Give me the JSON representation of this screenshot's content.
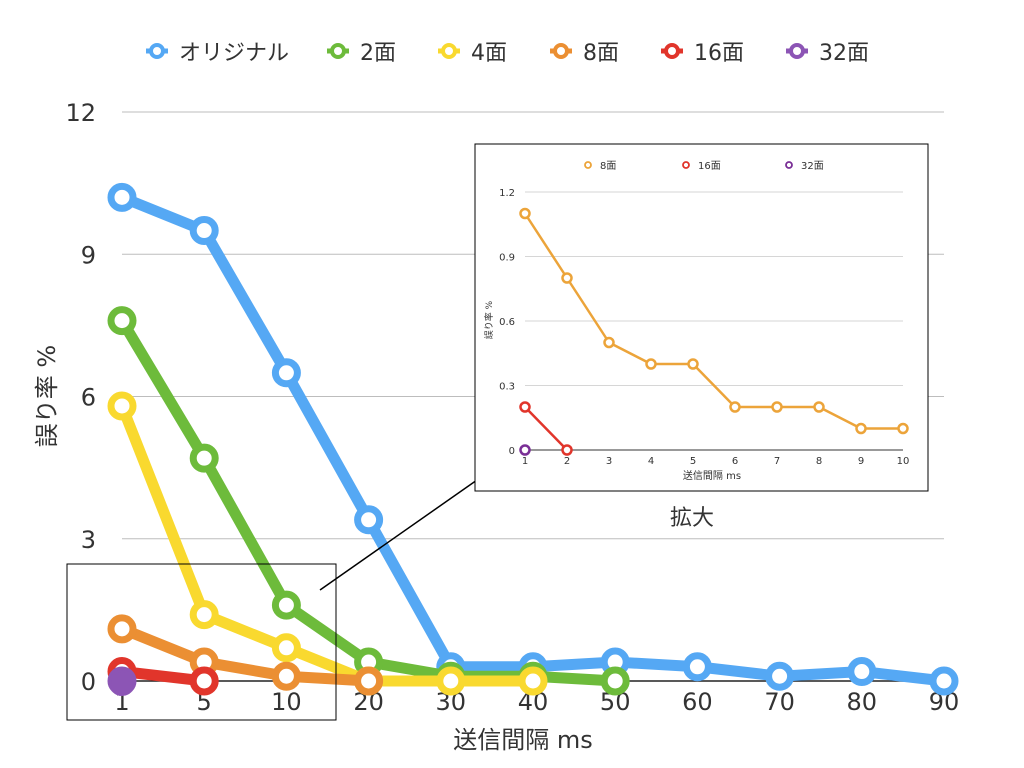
{
  "chart_data": [
    {
      "type": "line",
      "title": "",
      "xlabel": "送信間隔 ms",
      "ylabel": "誤り率 %",
      "x": [
        "1",
        "5",
        "10",
        "20",
        "30",
        "40",
        "50",
        "60",
        "70",
        "80",
        "90"
      ],
      "ylim": [
        0,
        12
      ],
      "yticks": [
        "0",
        "3",
        "6",
        "9",
        "12"
      ],
      "grid": true,
      "legend_position": "top",
      "series": [
        {
          "name": "オリジナル",
          "color": "#55a8f4",
          "values": [
            10.2,
            9.5,
            6.5,
            3.4,
            0.3,
            0.3,
            0.4,
            0.3,
            0.1,
            0.2,
            0.0
          ]
        },
        {
          "name": "2面",
          "color": "#6dbb3b",
          "values": [
            7.6,
            4.7,
            1.6,
            0.4,
            0.1,
            0.1,
            0.0,
            null,
            null,
            null,
            null
          ]
        },
        {
          "name": "4面",
          "color": "#f9d92f",
          "values": [
            5.8,
            1.4,
            0.7,
            0.0,
            0.0,
            0.0,
            null,
            null,
            null,
            null,
            null
          ]
        },
        {
          "name": "8面",
          "color": "#eb8f33",
          "values": [
            1.1,
            0.4,
            0.1,
            0.0,
            null,
            null,
            null,
            null,
            null,
            null,
            null
          ]
        },
        {
          "name": "16面",
          "color": "#e1352b",
          "values": [
            0.2,
            0.0,
            null,
            null,
            null,
            null,
            null,
            null,
            null,
            null,
            null
          ]
        },
        {
          "name": "32面",
          "color": "#8c55b5",
          "values": [
            0.0,
            null,
            null,
            null,
            null,
            null,
            null,
            null,
            null,
            null,
            null
          ]
        }
      ]
    },
    {
      "type": "line",
      "title": "",
      "caption": "拡大",
      "xlabel": "送信間隔 ms",
      "ylabel": "誤り率 %",
      "x": [
        "1",
        "2",
        "3",
        "4",
        "5",
        "6",
        "7",
        "8",
        "9",
        "10"
      ],
      "ylim": [
        0,
        1.2
      ],
      "yticks": [
        "0",
        "0.3",
        "0.6",
        "0.9",
        "1.2"
      ],
      "grid": true,
      "legend_position": "top",
      "series": [
        {
          "name": "8面",
          "color": "#eca43a",
          "values": [
            1.1,
            0.8,
            0.5,
            0.4,
            0.4,
            0.2,
            0.2,
            0.2,
            0.1,
            0.1
          ]
        },
        {
          "name": "16面",
          "color": "#e1352b",
          "values": [
            0.2,
            0.0,
            null,
            null,
            null,
            null,
            null,
            null,
            null,
            null
          ]
        },
        {
          "name": "32面",
          "color": "#7a2f96",
          "values": [
            0.0,
            null,
            null,
            null,
            null,
            null,
            null,
            null,
            null,
            null
          ]
        }
      ]
    }
  ]
}
